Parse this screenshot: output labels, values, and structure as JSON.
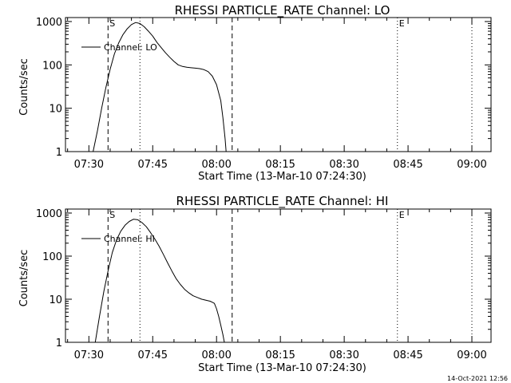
{
  "footer_timestamp": "14-Oct-2021 12:56",
  "chart_data": [
    {
      "type": "line",
      "title": "RHESSI PARTICLE_RATE Channel: LO",
      "xlabel": "Start Time (13-Mar-10 07:24:30)",
      "ylabel": "Counts/sec",
      "y_scale": "log",
      "ylim": [
        1,
        1000
      ],
      "xlim": [
        "07:24:30",
        "09:04:30"
      ],
      "x_ticks": [
        "07:30",
        "07:45",
        "08:00",
        "08:15",
        "08:30",
        "08:45",
        "09:00"
      ],
      "y_ticks": [
        "1",
        "10",
        "100",
        "1000"
      ],
      "legend": {
        "position": "top-left",
        "entries": [
          "Channel: LO"
        ]
      },
      "markers": [
        {
          "label": "S",
          "time": "07:34:30",
          "style": "dashed"
        },
        {
          "label": "",
          "time": "07:42:00",
          "style": "dotted"
        },
        {
          "label": "",
          "time": "08:03:40",
          "style": "dashed"
        },
        {
          "label": "E",
          "time": "08:42:30",
          "style": "dotted"
        },
        {
          "label": "",
          "time": "09:00:00",
          "style": "dotted"
        }
      ],
      "series": [
        {
          "name": "Channel: LO",
          "x": [
            "07:31:00",
            "07:32:00",
            "07:33:00",
            "07:34:00",
            "07:35:00",
            "07:36:00",
            "07:37:00",
            "07:38:00",
            "07:39:00",
            "07:40:00",
            "07:41:00",
            "07:42:00",
            "07:43:00",
            "07:44:00",
            "07:45:00",
            "07:46:00",
            "07:47:00",
            "07:48:00",
            "07:49:00",
            "07:50:00",
            "07:51:00",
            "07:52:00",
            "07:53:00",
            "07:54:00",
            "07:55:00",
            "07:56:00",
            "07:57:00",
            "07:58:00",
            "07:59:00",
            "08:00:00",
            "08:01:00",
            "08:01:30",
            "08:02:00",
            "08:02:15"
          ],
          "y": [
            1,
            3,
            10,
            30,
            80,
            180,
            320,
            500,
            680,
            850,
            950,
            900,
            760,
            600,
            460,
            330,
            250,
            190,
            150,
            120,
            100,
            92,
            88,
            86,
            84,
            82,
            78,
            70,
            55,
            35,
            15,
            6,
            2,
            1
          ]
        }
      ]
    },
    {
      "type": "line",
      "title": "RHESSI PARTICLE_RATE Channel: HI",
      "xlabel": "Start Time (13-Mar-10 07:24:30)",
      "ylabel": "Counts/sec",
      "y_scale": "log",
      "ylim": [
        1,
        1000
      ],
      "xlim": [
        "07:24:30",
        "09:04:30"
      ],
      "x_ticks": [
        "07:30",
        "07:45",
        "08:00",
        "08:15",
        "08:30",
        "08:45",
        "09:00"
      ],
      "y_ticks": [
        "1",
        "10",
        "100",
        "1000"
      ],
      "legend": {
        "position": "top-left",
        "entries": [
          "Channel: HI"
        ]
      },
      "markers": [
        {
          "label": "S",
          "time": "07:34:30",
          "style": "dashed"
        },
        {
          "label": "",
          "time": "07:42:00",
          "style": "dotted"
        },
        {
          "label": "",
          "time": "08:03:40",
          "style": "dashed"
        },
        {
          "label": "E",
          "time": "08:42:30",
          "style": "dotted"
        },
        {
          "label": "",
          "time": "09:00:00",
          "style": "dotted"
        }
      ],
      "series": [
        {
          "name": "Channel: HI",
          "x": [
            "07:31:30",
            "07:32:30",
            "07:33:30",
            "07:34:30",
            "07:35:30",
            "07:36:30",
            "07:37:30",
            "07:38:30",
            "07:39:30",
            "07:40:30",
            "07:41:30",
            "07:42:30",
            "07:43:30",
            "07:44:30",
            "07:45:30",
            "07:46:30",
            "07:47:30",
            "07:48:30",
            "07:49:30",
            "07:50:30",
            "07:51:30",
            "07:52:30",
            "07:53:30",
            "07:54:30",
            "07:55:30",
            "07:56:30",
            "07:57:30",
            "07:58:30",
            "07:59:00",
            "07:59:30",
            "08:00:00",
            "08:00:30",
            "08:01:00",
            "08:01:30",
            "08:01:50"
          ],
          "y": [
            1,
            4,
            15,
            45,
            120,
            240,
            380,
            520,
            640,
            720,
            700,
            600,
            480,
            350,
            250,
            170,
            110,
            70,
            45,
            30,
            22,
            17,
            14,
            12,
            11,
            10,
            9.5,
            9,
            8.5,
            8,
            6,
            4,
            2.5,
            1.5,
            1
          ]
        }
      ]
    }
  ]
}
